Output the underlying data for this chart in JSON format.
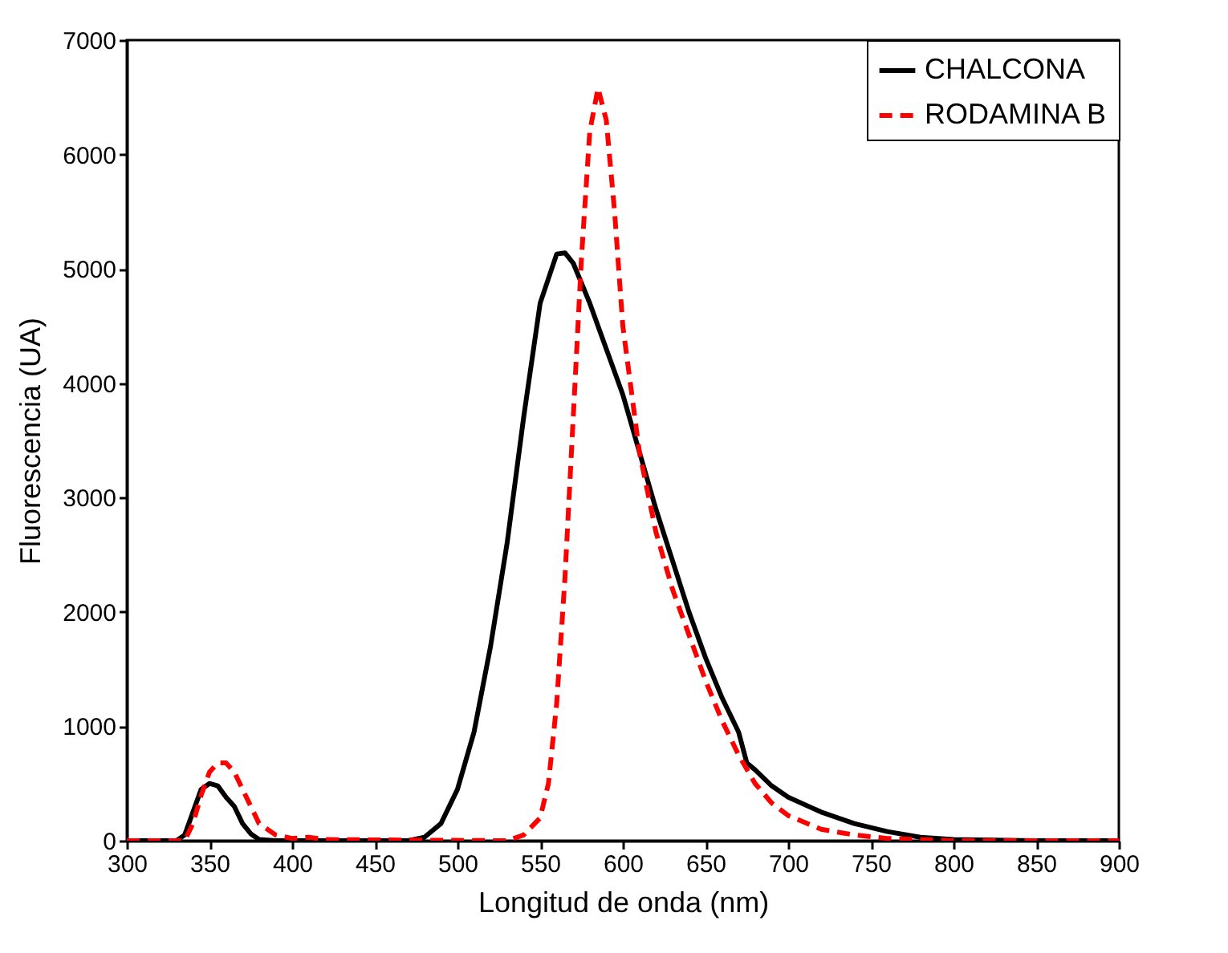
{
  "chart_data": {
    "type": "line",
    "xlabel": "Longitud de onda (nm)",
    "ylabel": "Fluorescencia (UA)",
    "xlim": [
      300,
      900
    ],
    "xticks": [
      300,
      350,
      400,
      450,
      500,
      550,
      600,
      650,
      700,
      750,
      800,
      850,
      900
    ],
    "ylim": [
      0,
      7000
    ],
    "yticks": [
      0,
      1000,
      2000,
      3000,
      4000,
      5000,
      6000,
      7000
    ],
    "grid": false,
    "legend": "top right",
    "marker": "none",
    "series": [
      {
        "name": "CHALCONA",
        "color": "#000000",
        "line_style": "solid",
        "x": [
          300,
          330,
          335,
          340,
          345,
          350,
          355,
          360,
          365,
          370,
          375,
          380,
          390,
          470,
          480,
          490,
          500,
          510,
          520,
          530,
          540,
          550,
          560,
          565,
          570,
          580,
          590,
          600,
          610,
          620,
          630,
          640,
          650,
          660,
          670,
          675,
          680,
          690,
          700,
          720,
          740,
          760,
          780,
          800,
          850,
          900
        ],
        "values": [
          0,
          0,
          50,
          250,
          450,
          500,
          480,
          380,
          300,
          150,
          60,
          10,
          0,
          0,
          30,
          150,
          450,
          950,
          1700,
          2600,
          3700,
          4700,
          5130,
          5140,
          5050,
          4700,
          4300,
          3900,
          3400,
          2900,
          2450,
          2000,
          1600,
          1250,
          950,
          680,
          620,
          480,
          380,
          250,
          150,
          80,
          30,
          10,
          0,
          0
        ]
      },
      {
        "name": "RODAMINA B",
        "color": "#ff0000",
        "line_style": "dashed",
        "x": [
          300,
          335,
          340,
          345,
          350,
          355,
          360,
          365,
          370,
          375,
          380,
          390,
          400,
          410,
          420,
          530,
          540,
          550,
          555,
          560,
          565,
          570,
          575,
          580,
          585,
          590,
          595,
          600,
          610,
          620,
          630,
          640,
          650,
          660,
          670,
          680,
          690,
          700,
          720,
          740,
          760,
          800,
          900
        ],
        "values": [
          0,
          0,
          150,
          400,
          600,
          680,
          680,
          600,
          450,
          300,
          150,
          50,
          20,
          30,
          10,
          0,
          50,
          200,
          500,
          1200,
          2300,
          3700,
          5100,
          6200,
          6580,
          6300,
          5500,
          4500,
          3400,
          2700,
          2200,
          1800,
          1400,
          1050,
          750,
          500,
          330,
          220,
          100,
          50,
          20,
          0,
          0
        ]
      }
    ]
  }
}
